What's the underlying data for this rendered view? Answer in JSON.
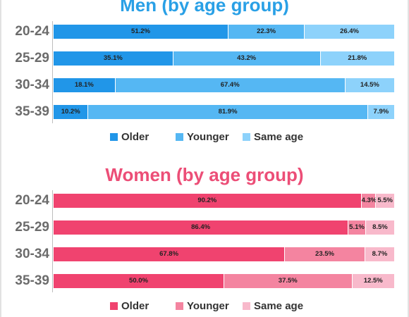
{
  "chart_data": [
    {
      "type": "bar",
      "orientation": "horizontal",
      "stacked": true,
      "title": "Men (by age group)",
      "categories": [
        "20-24",
        "25-29",
        "30-34",
        "35-39"
      ],
      "series": [
        {
          "name": "Older",
          "values": [
            51.2,
            35.1,
            18.1,
            10.2
          ],
          "labels": [
            "51.2%",
            "35.1%",
            "18.1%",
            "10.2%"
          ]
        },
        {
          "name": "Younger",
          "values": [
            22.3,
            43.2,
            67.4,
            81.9
          ],
          "labels": [
            "22.3%",
            "43.2%",
            "67.4%",
            "81.9%"
          ]
        },
        {
          "name": "Same age",
          "values": [
            26.4,
            21.8,
            14.5,
            7.9
          ],
          "labels": [
            "26.4%",
            "21.8%",
            "14.5%",
            "7.9%"
          ]
        }
      ],
      "legend": "bottom",
      "colors": {
        "Older": "#2196e8",
        "Younger": "#55b7f3",
        "Same age": "#8dd2fb"
      },
      "title_color": "#29a0e6"
    },
    {
      "type": "bar",
      "orientation": "horizontal",
      "stacked": true,
      "title": "Women (by age group)",
      "categories": [
        "20-24",
        "25-29",
        "30-34",
        "35-39"
      ],
      "series": [
        {
          "name": "Older",
          "values": [
            90.2,
            86.4,
            67.8,
            50.0
          ],
          "labels": [
            "90.2%",
            "86.4%",
            "67.8%",
            "50.0%"
          ]
        },
        {
          "name": "Younger",
          "values": [
            4.3,
            5.1,
            23.5,
            37.5
          ],
          "labels": [
            "4.3%",
            "5.1%",
            "23.5%",
            "37.5%"
          ]
        },
        {
          "name": "Same age",
          "values": [
            5.5,
            8.5,
            8.7,
            12.5
          ],
          "labels": [
            "5.5%",
            "8.5%",
            "8.7%",
            "12.5%"
          ]
        }
      ],
      "legend": "bottom",
      "colors": {
        "Older": "#f0436f",
        "Younger": "#f484a0",
        "Same age": "#f8b9cb"
      },
      "title_color": "#ec4e77"
    }
  ]
}
